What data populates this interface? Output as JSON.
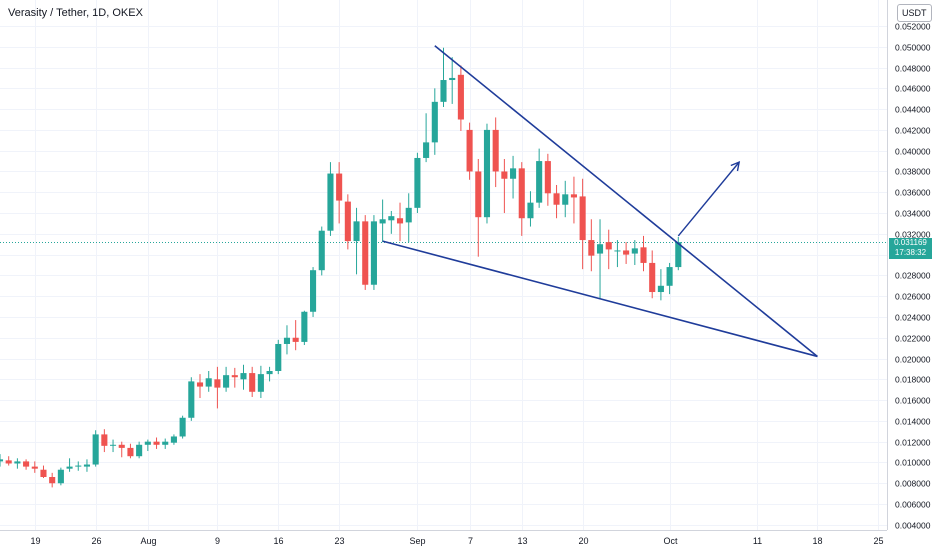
{
  "header": {
    "title": "Verasity / Tether, 1D, OKEX",
    "currency": "USDT"
  },
  "price_label": {
    "price": "0.031169",
    "countdown": "17:38:32"
  },
  "colors": {
    "up": "#26a69a",
    "down": "#ef5350",
    "pattern_line": "#1f3c9a",
    "grid": "#f0f3fa",
    "axis_text": "#131722"
  },
  "chart_data": {
    "type": "candlestick",
    "title": "Verasity / Tether, 1D, OKEX",
    "y_axis": {
      "ticks": [
        "0.004000",
        "0.006000",
        "0.008000",
        "0.010000",
        "0.012000",
        "0.014000",
        "0.016000",
        "0.018000",
        "0.020000",
        "0.022000",
        "0.024000",
        "0.026000",
        "0.028000",
        "0.030000",
        "0.032000",
        "0.034000",
        "0.036000",
        "0.038000",
        "0.040000",
        "0.042000",
        "0.044000",
        "0.046000",
        "0.048000",
        "0.050000",
        "0.052000"
      ],
      "range": [
        0.0035,
        0.0545
      ],
      "position": "right"
    },
    "x_axis": {
      "ticks": [
        {
          "day": 19,
          "label": "19"
        },
        {
          "day": 26,
          "label": "26"
        },
        {
          "day": 32,
          "label": "Aug"
        },
        {
          "day": 40,
          "label": "9"
        },
        {
          "day": 47,
          "label": "16"
        },
        {
          "day": 54,
          "label": "23"
        },
        {
          "day": 63,
          "label": "Sep"
        },
        {
          "day": 69,
          "label": "7"
        },
        {
          "day": 75,
          "label": "13"
        },
        {
          "day": 82,
          "label": "20"
        },
        {
          "day": 92,
          "label": "Oct"
        },
        {
          "day": 102,
          "label": "11"
        },
        {
          "day": 109,
          "label": "18"
        },
        {
          "day": 116,
          "label": "25"
        }
      ],
      "range": [
        15,
        117
      ]
    },
    "current_price": 0.031169,
    "candles": [
      {
        "day": 15,
        "o": 0.0101,
        "h": 0.0108,
        "l": 0.0096,
        "c": 0.0103
      },
      {
        "day": 16,
        "o": 0.0102,
        "h": 0.0106,
        "l": 0.0097,
        "c": 0.0099
      },
      {
        "day": 17,
        "o": 0.0099,
        "h": 0.0104,
        "l": 0.0094,
        "c": 0.0101
      },
      {
        "day": 18,
        "o": 0.0101,
        "h": 0.0103,
        "l": 0.0093,
        "c": 0.0096
      },
      {
        "day": 19,
        "o": 0.0096,
        "h": 0.0101,
        "l": 0.009,
        "c": 0.0094
      },
      {
        "day": 20,
        "o": 0.0093,
        "h": 0.0097,
        "l": 0.0085,
        "c": 0.0086
      },
      {
        "day": 21,
        "o": 0.0086,
        "h": 0.009,
        "l": 0.0076,
        "c": 0.008
      },
      {
        "day": 22,
        "o": 0.008,
        "h": 0.0095,
        "l": 0.0078,
        "c": 0.0093
      },
      {
        "day": 23,
        "o": 0.0094,
        "h": 0.0104,
        "l": 0.0091,
        "c": 0.0096
      },
      {
        "day": 24,
        "o": 0.0096,
        "h": 0.0101,
        "l": 0.0092,
        "c": 0.0097
      },
      {
        "day": 25,
        "o": 0.0096,
        "h": 0.0103,
        "l": 0.0091,
        "c": 0.0098
      },
      {
        "day": 26,
        "o": 0.0098,
        "h": 0.0131,
        "l": 0.0096,
        "c": 0.0127
      },
      {
        "day": 27,
        "o": 0.0127,
        "h": 0.0132,
        "l": 0.011,
        "c": 0.0116
      },
      {
        "day": 28,
        "o": 0.0117,
        "h": 0.0122,
        "l": 0.011,
        "c": 0.0117
      },
      {
        "day": 29,
        "o": 0.0117,
        "h": 0.012,
        "l": 0.0105,
        "c": 0.0114
      },
      {
        "day": 30,
        "o": 0.0114,
        "h": 0.0118,
        "l": 0.0104,
        "c": 0.0106
      },
      {
        "day": 31,
        "o": 0.0106,
        "h": 0.012,
        "l": 0.0104,
        "c": 0.0117
      },
      {
        "day": 32,
        "o": 0.0117,
        "h": 0.0122,
        "l": 0.0111,
        "c": 0.012
      },
      {
        "day": 33,
        "o": 0.012,
        "h": 0.0124,
        "l": 0.0113,
        "c": 0.0117
      },
      {
        "day": 34,
        "o": 0.0117,
        "h": 0.0123,
        "l": 0.0113,
        "c": 0.012
      },
      {
        "day": 35,
        "o": 0.0119,
        "h": 0.0127,
        "l": 0.0117,
        "c": 0.0125
      },
      {
        "day": 36,
        "o": 0.0125,
        "h": 0.0145,
        "l": 0.0123,
        "c": 0.0143
      },
      {
        "day": 37,
        "o": 0.0143,
        "h": 0.0182,
        "l": 0.014,
        "c": 0.0178
      },
      {
        "day": 38,
        "o": 0.0177,
        "h": 0.0185,
        "l": 0.0162,
        "c": 0.0173
      },
      {
        "day": 39,
        "o": 0.0173,
        "h": 0.0188,
        "l": 0.0168,
        "c": 0.0181
      },
      {
        "day": 40,
        "o": 0.018,
        "h": 0.0192,
        "l": 0.0152,
        "c": 0.0172
      },
      {
        "day": 41,
        "o": 0.0172,
        "h": 0.0192,
        "l": 0.0168,
        "c": 0.0184
      },
      {
        "day": 42,
        "o": 0.0184,
        "h": 0.0191,
        "l": 0.0172,
        "c": 0.0182
      },
      {
        "day": 43,
        "o": 0.018,
        "h": 0.0194,
        "l": 0.017,
        "c": 0.0186
      },
      {
        "day": 44,
        "o": 0.0186,
        "h": 0.0192,
        "l": 0.0163,
        "c": 0.0168
      },
      {
        "day": 45,
        "o": 0.0168,
        "h": 0.0193,
        "l": 0.0162,
        "c": 0.0185
      },
      {
        "day": 46,
        "o": 0.0185,
        "h": 0.0192,
        "l": 0.0178,
        "c": 0.0188
      },
      {
        "day": 47,
        "o": 0.0188,
        "h": 0.0218,
        "l": 0.0185,
        "c": 0.0214
      },
      {
        "day": 48,
        "o": 0.0214,
        "h": 0.0232,
        "l": 0.0204,
        "c": 0.022
      },
      {
        "day": 49,
        "o": 0.022,
        "h": 0.0237,
        "l": 0.0208,
        "c": 0.0216
      },
      {
        "day": 50,
        "o": 0.0216,
        "h": 0.0246,
        "l": 0.0213,
        "c": 0.0245
      },
      {
        "day": 51,
        "o": 0.0245,
        "h": 0.0288,
        "l": 0.024,
        "c": 0.0285
      },
      {
        "day": 52,
        "o": 0.0285,
        "h": 0.0327,
        "l": 0.028,
        "c": 0.0323
      },
      {
        "day": 53,
        "o": 0.0323,
        "h": 0.0389,
        "l": 0.0318,
        "c": 0.0378
      },
      {
        "day": 54,
        "o": 0.0378,
        "h": 0.0389,
        "l": 0.033,
        "c": 0.0352
      },
      {
        "day": 55,
        "o": 0.0351,
        "h": 0.0358,
        "l": 0.0305,
        "c": 0.0313
      },
      {
        "day": 56,
        "o": 0.0313,
        "h": 0.0345,
        "l": 0.0281,
        "c": 0.0332
      },
      {
        "day": 57,
        "o": 0.0332,
        "h": 0.0338,
        "l": 0.0266,
        "c": 0.0271
      },
      {
        "day": 58,
        "o": 0.0271,
        "h": 0.0338,
        "l": 0.0266,
        "c": 0.0332
      },
      {
        "day": 59,
        "o": 0.033,
        "h": 0.0353,
        "l": 0.0312,
        "c": 0.0334
      },
      {
        "day": 60,
        "o": 0.0333,
        "h": 0.0342,
        "l": 0.032,
        "c": 0.0337
      },
      {
        "day": 61,
        "o": 0.0335,
        "h": 0.035,
        "l": 0.0313,
        "c": 0.033
      },
      {
        "day": 62,
        "o": 0.0331,
        "h": 0.0359,
        "l": 0.0312,
        "c": 0.0345
      },
      {
        "day": 63,
        "o": 0.0345,
        "h": 0.0398,
        "l": 0.034,
        "c": 0.0393
      },
      {
        "day": 64,
        "o": 0.0393,
        "h": 0.0436,
        "l": 0.0389,
        "c": 0.0408
      },
      {
        "day": 65,
        "o": 0.0408,
        "h": 0.046,
        "l": 0.0396,
        "c": 0.0447
      },
      {
        "day": 66,
        "o": 0.0447,
        "h": 0.0499,
        "l": 0.0442,
        "c": 0.0468
      },
      {
        "day": 67,
        "o": 0.0468,
        "h": 0.049,
        "l": 0.0445,
        "c": 0.047
      },
      {
        "day": 68,
        "o": 0.0473,
        "h": 0.0482,
        "l": 0.0419,
        "c": 0.043
      },
      {
        "day": 69,
        "o": 0.042,
        "h": 0.0427,
        "l": 0.0372,
        "c": 0.038
      },
      {
        "day": 70,
        "o": 0.038,
        "h": 0.0392,
        "l": 0.0298,
        "c": 0.0336
      },
      {
        "day": 71,
        "o": 0.0336,
        "h": 0.0426,
        "l": 0.033,
        "c": 0.042
      },
      {
        "day": 72,
        "o": 0.042,
        "h": 0.0432,
        "l": 0.0365,
        "c": 0.038
      },
      {
        "day": 73,
        "o": 0.038,
        "h": 0.0392,
        "l": 0.034,
        "c": 0.0373
      },
      {
        "day": 74,
        "o": 0.0373,
        "h": 0.0395,
        "l": 0.0354,
        "c": 0.0383
      },
      {
        "day": 75,
        "o": 0.0383,
        "h": 0.0389,
        "l": 0.0318,
        "c": 0.0335
      },
      {
        "day": 76,
        "o": 0.0335,
        "h": 0.0361,
        "l": 0.0327,
        "c": 0.035
      },
      {
        "day": 77,
        "o": 0.035,
        "h": 0.0402,
        "l": 0.0345,
        "c": 0.039
      },
      {
        "day": 78,
        "o": 0.039,
        "h": 0.0397,
        "l": 0.0347,
        "c": 0.0359
      },
      {
        "day": 79,
        "o": 0.0359,
        "h": 0.0367,
        "l": 0.0335,
        "c": 0.0348
      },
      {
        "day": 80,
        "o": 0.0348,
        "h": 0.0371,
        "l": 0.0336,
        "c": 0.0358
      },
      {
        "day": 81,
        "o": 0.0358,
        "h": 0.0375,
        "l": 0.033,
        "c": 0.0355
      },
      {
        "day": 82,
        "o": 0.0356,
        "h": 0.0373,
        "l": 0.0286,
        "c": 0.0314
      },
      {
        "day": 83,
        "o": 0.0314,
        "h": 0.0334,
        "l": 0.0284,
        "c": 0.0299
      },
      {
        "day": 84,
        "o": 0.0301,
        "h": 0.0334,
        "l": 0.0258,
        "c": 0.031
      },
      {
        "day": 85,
        "o": 0.0312,
        "h": 0.0324,
        "l": 0.0286,
        "c": 0.0305
      },
      {
        "day": 86,
        "o": 0.0304,
        "h": 0.0314,
        "l": 0.0288,
        "c": 0.0304
      },
      {
        "day": 87,
        "o": 0.0304,
        "h": 0.0312,
        "l": 0.0291,
        "c": 0.03
      },
      {
        "day": 88,
        "o": 0.0301,
        "h": 0.0314,
        "l": 0.029,
        "c": 0.0306
      },
      {
        "day": 89,
        "o": 0.0307,
        "h": 0.0318,
        "l": 0.0284,
        "c": 0.0292
      },
      {
        "day": 90,
        "o": 0.0292,
        "h": 0.0304,
        "l": 0.0258,
        "c": 0.0264
      },
      {
        "day": 91,
        "o": 0.0264,
        "h": 0.0286,
        "l": 0.0256,
        "c": 0.027
      },
      {
        "day": 92,
        "o": 0.027,
        "h": 0.0292,
        "l": 0.0262,
        "c": 0.0288
      },
      {
        "day": 93,
        "o": 0.0288,
        "h": 0.0317,
        "l": 0.0285,
        "c": 0.0312
      }
    ],
    "trendlines": [
      {
        "name": "upper",
        "from": {
          "day": 65,
          "price": 0.0501
        },
        "to": {
          "day": 109,
          "price": 0.0202
        }
      },
      {
        "name": "lower",
        "from": {
          "day": 59,
          "price": 0.0313
        },
        "to": {
          "day": 109,
          "price": 0.0202
        }
      }
    ],
    "arrow": {
      "from": {
        "day": 93,
        "price": 0.0318
      },
      "to": {
        "day": 100,
        "price": 0.0389
      }
    },
    "grid": true
  }
}
